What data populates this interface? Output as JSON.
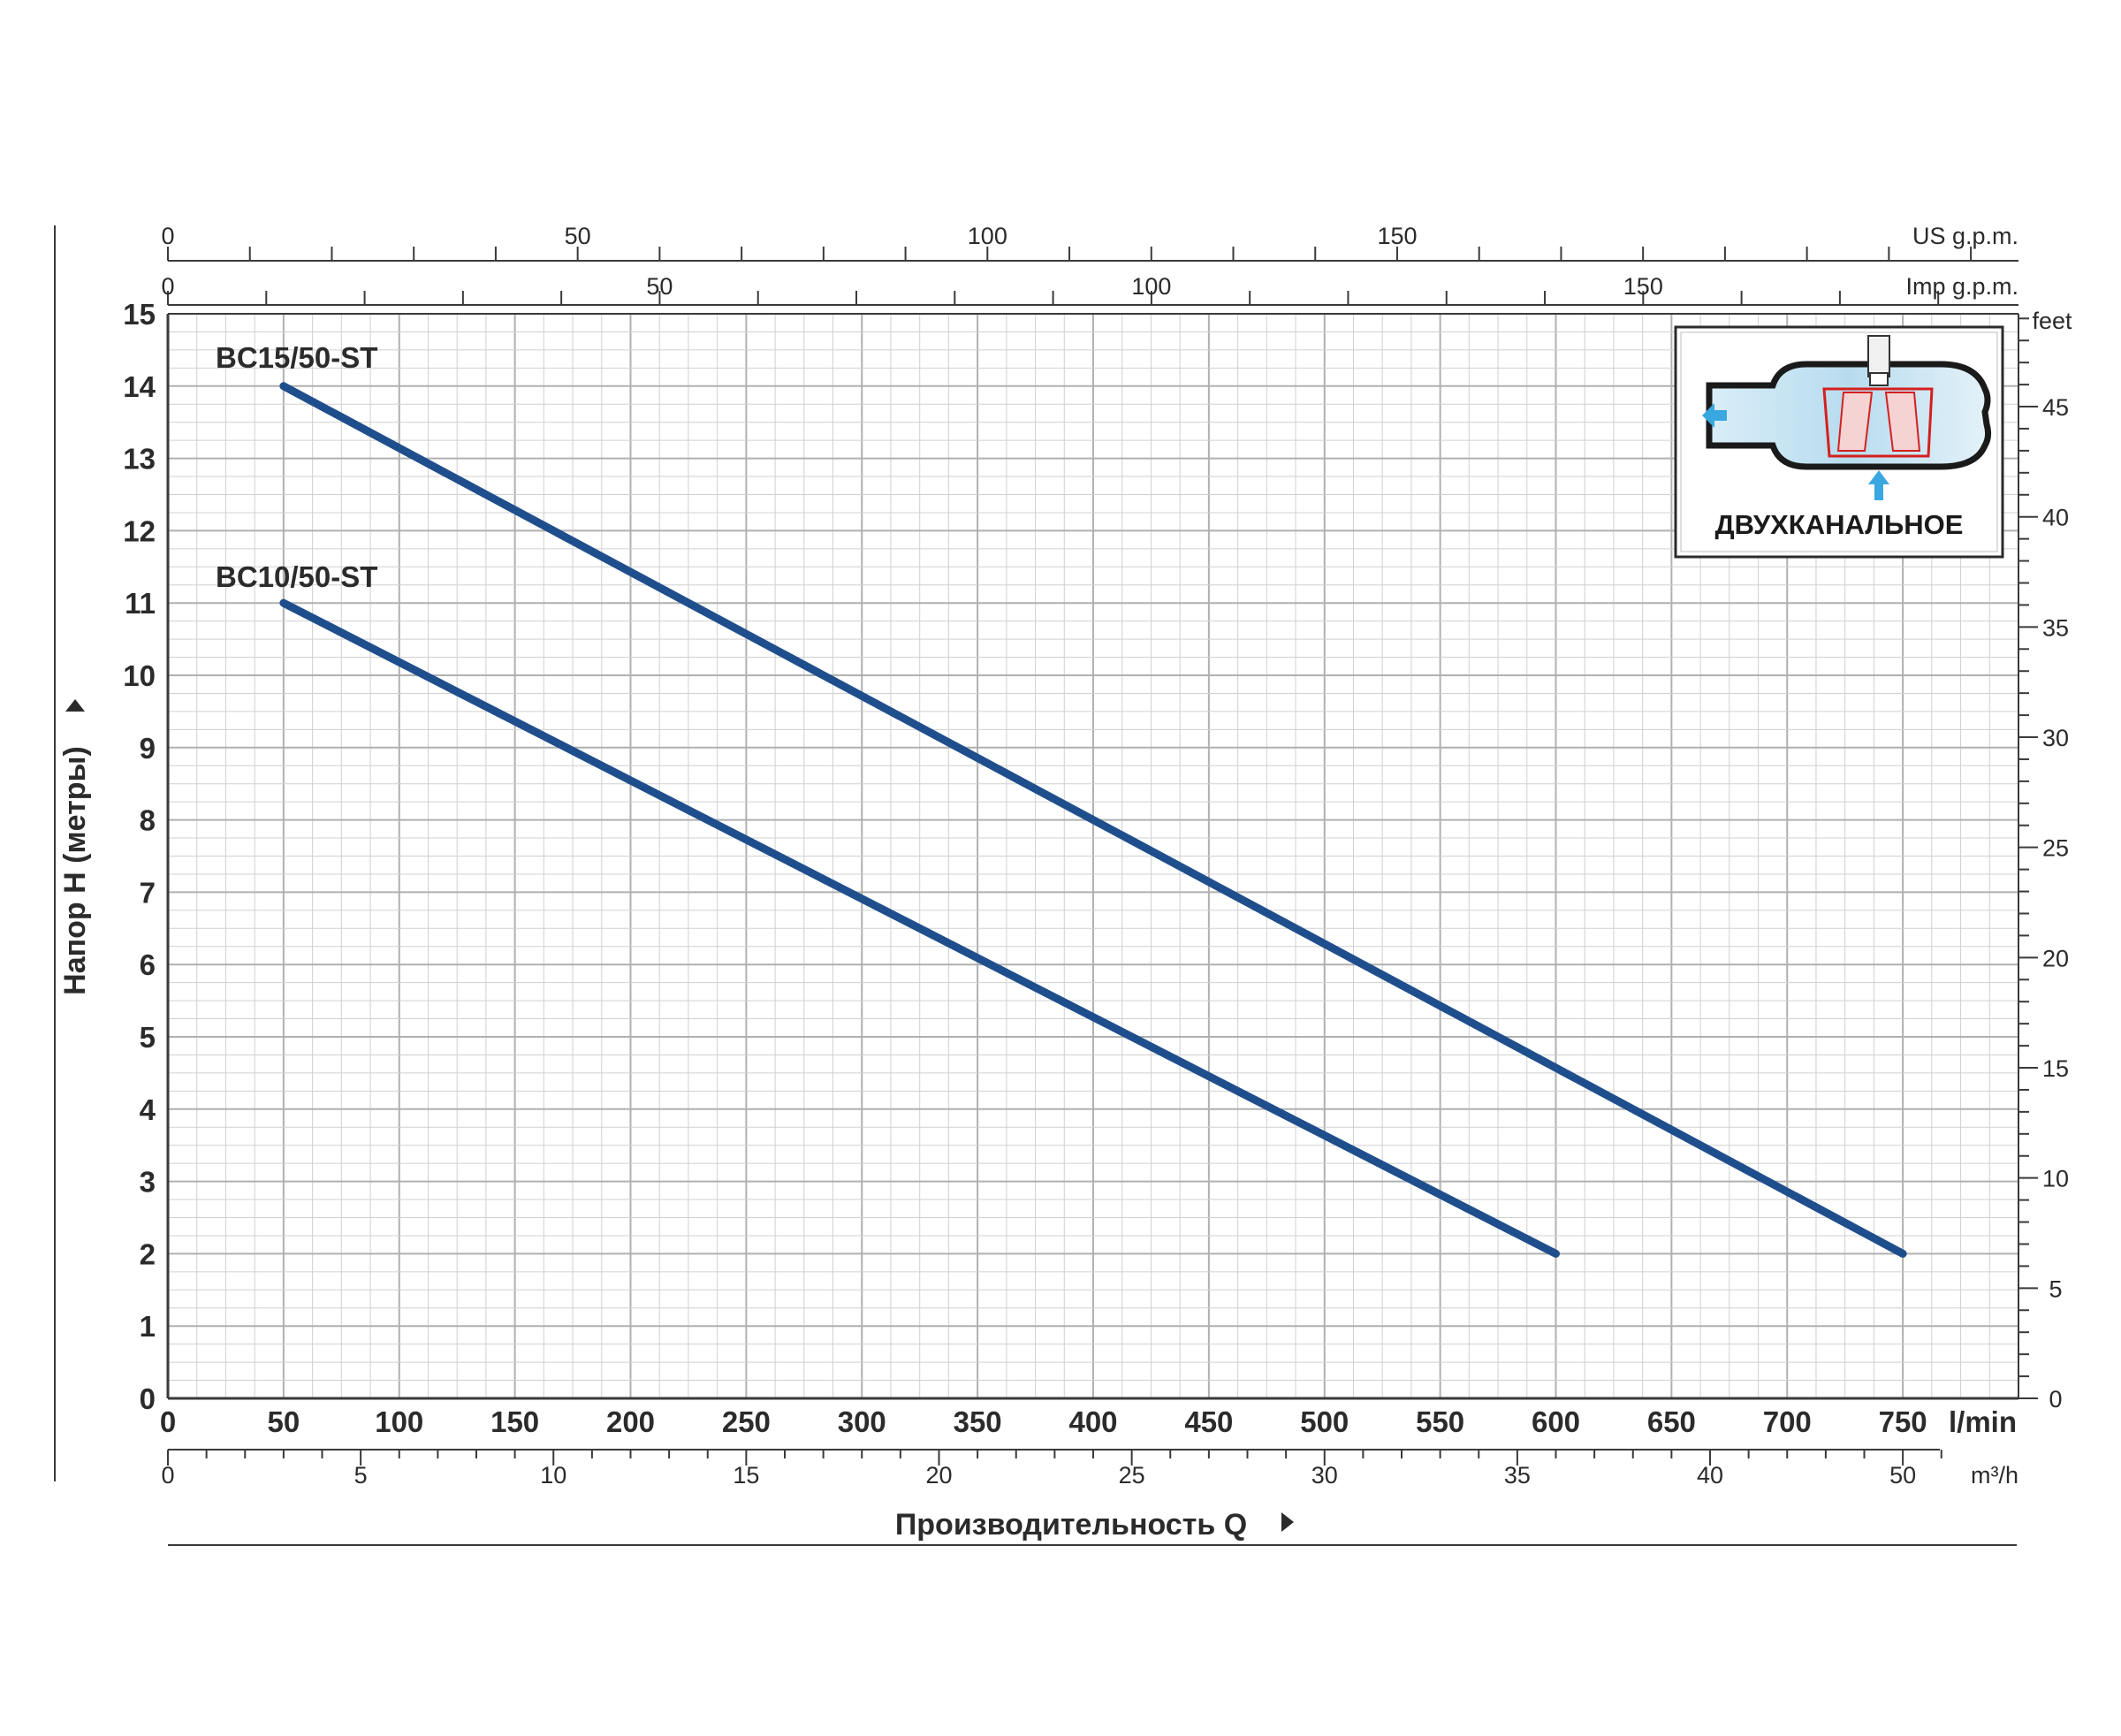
{
  "chart_data": {
    "type": "line",
    "x_unit_primary": "l/min",
    "x_unit_secondary": "m³/h",
    "x_unit_top_us": "US g.p.m.",
    "x_unit_top_imp": "Imp g.p.m.",
    "y_unit_right": "feet",
    "xlabel": "Производительность Q",
    "ylabel": "Напор H (метры)",
    "xlim": [
      0,
      800
    ],
    "ylim": [
      0,
      15
    ],
    "grid": true,
    "x_ticks": [
      "0",
      "50",
      "100",
      "150",
      "200",
      "250",
      "300",
      "350",
      "400",
      "450",
      "500",
      "550",
      "600",
      "650",
      "700",
      "750"
    ],
    "x_ticks_m3h": [
      "0",
      "5",
      "10",
      "15",
      "20",
      "25",
      "30",
      "35",
      "40",
      "50"
    ],
    "x_ticks_us_gpm": [
      "0",
      "50",
      "100",
      "150"
    ],
    "x_ticks_imp_gpm": [
      "0",
      "50",
      "100",
      "150"
    ],
    "y_ticks": [
      "0",
      "1",
      "2",
      "3",
      "4",
      "5",
      "6",
      "7",
      "8",
      "9",
      "10",
      "11",
      "12",
      "13",
      "14",
      "15"
    ],
    "y_ticks_feet": [
      "0",
      "5",
      "10",
      "15",
      "20",
      "25",
      "30",
      "35",
      "40",
      "45"
    ],
    "series": [
      {
        "name": "BC15/50-ST",
        "color": "#1f4e8c",
        "x": [
          50,
          750
        ],
        "y": [
          14,
          2
        ]
      },
      {
        "name": "BC10/50-ST",
        "color": "#1f4e8c",
        "x": [
          50,
          600
        ],
        "y": [
          11,
          2
        ]
      }
    ],
    "inset": {
      "label": "ДВУХКАНАЛЬНОЕ",
      "icon": "twin-channel-impeller-icon"
    }
  }
}
